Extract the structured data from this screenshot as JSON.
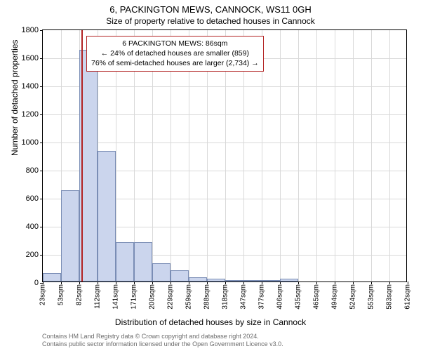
{
  "title_main": "6, PACKINGTON MEWS, CANNOCK, WS11 0GH",
  "title_sub": "Size of property relative to detached houses in Cannock",
  "ylabel": "Number of detached properties",
  "xlabel": "Distribution of detached houses by size in Cannock",
  "annotation": {
    "line1": "6 PACKINGTON MEWS: 86sqm",
    "line2": "← 24% of detached houses are smaller (859)",
    "line3": "76% of semi-detached houses are larger (2,734) →"
  },
  "footer": {
    "line1": "Contains HM Land Registry data © Crown copyright and database right 2024.",
    "line2": "Contains public sector information licensed under the Open Government Licence v3.0."
  },
  "chart": {
    "type": "histogram",
    "ylim": [
      0,
      1800
    ],
    "ytick_step": 200,
    "bar_color": "#cbd5ed",
    "bar_border": "#7a8db5",
    "grid_color": "#d9d9d9",
    "marker_color": "#b22222",
    "marker_value": 86,
    "x_start": 23,
    "x_bin_width": 29.5,
    "x_tick_labels": [
      "23sqm",
      "53sqm",
      "82sqm",
      "112sqm",
      "141sqm",
      "171sqm",
      "200sqm",
      "229sqm",
      "259sqm",
      "288sqm",
      "318sqm",
      "347sqm",
      "377sqm",
      "406sqm",
      "435sqm",
      "465sqm",
      "494sqm",
      "524sqm",
      "553sqm",
      "583sqm",
      "612sqm"
    ],
    "values": [
      60,
      650,
      1650,
      930,
      280,
      280,
      130,
      80,
      30,
      20,
      10,
      10,
      8,
      20,
      0,
      0,
      0,
      0,
      0,
      0
    ]
  }
}
